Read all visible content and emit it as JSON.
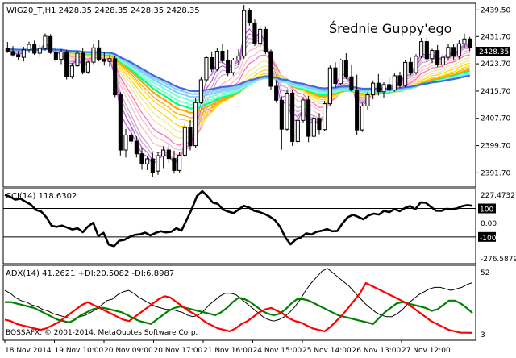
{
  "chart_data": {
    "symbol_header": "WIG20_T,H1  2428.35 2428.35 2428.35 2428.35",
    "annotation": "Średnie Guppy'ego",
    "copyright": "BOSSAFX, © 2001-2014, MetaQuotes Software Corp.",
    "current_price_label": "2428.35",
    "main_pane": {
      "type": "candlestick",
      "y_ticks": [
        "2439.50",
        "2431.70",
        "2423.70",
        "2415.70",
        "2407.70",
        "2399.70",
        "2391.70"
      ],
      "ylim": [
        2388.0,
        2441.0
      ],
      "current_price": 2428.35,
      "candles": [
        {
          "o": 2428.2,
          "h": 2430.1,
          "l": 2426.9,
          "c": 2427.2
        },
        {
          "o": 2427.3,
          "h": 2428.9,
          "l": 2425.8,
          "c": 2426.3
        },
        {
          "o": 2426.3,
          "h": 2427.5,
          "l": 2424.8,
          "c": 2425.7
        },
        {
          "o": 2425.6,
          "h": 2428.7,
          "l": 2424.4,
          "c": 2427.8
        },
        {
          "o": 2427.8,
          "h": 2430.2,
          "l": 2426.9,
          "c": 2429.4
        },
        {
          "o": 2429.3,
          "h": 2430.5,
          "l": 2426.3,
          "c": 2426.8
        },
        {
          "o": 2426.8,
          "h": 2429.3,
          "l": 2425.7,
          "c": 2428.2
        },
        {
          "o": 2428.2,
          "h": 2432.6,
          "l": 2427.6,
          "c": 2431.8
        },
        {
          "o": 2431.7,
          "h": 2432.4,
          "l": 2426.6,
          "c": 2427.0
        },
        {
          "o": 2427.0,
          "h": 2428.6,
          "l": 2424.2,
          "c": 2425.0
        },
        {
          "o": 2425.0,
          "h": 2428.0,
          "l": 2423.6,
          "c": 2427.2
        },
        {
          "o": 2427.2,
          "h": 2427.8,
          "l": 2419.1,
          "c": 2419.9
        },
        {
          "o": 2420.0,
          "h": 2423.9,
          "l": 2419.3,
          "c": 2423.1
        },
        {
          "o": 2423.1,
          "h": 2427.4,
          "l": 2422.8,
          "c": 2426.8
        },
        {
          "o": 2426.8,
          "h": 2428.3,
          "l": 2420.6,
          "c": 2421.3
        },
        {
          "o": 2421.3,
          "h": 2424.5,
          "l": 2420.8,
          "c": 2424.2
        },
        {
          "o": 2424.2,
          "h": 2429.7,
          "l": 2423.6,
          "c": 2428.4
        },
        {
          "o": 2428.4,
          "h": 2430.6,
          "l": 2424.4,
          "c": 2425.0
        },
        {
          "o": 2425.0,
          "h": 2427.2,
          "l": 2423.2,
          "c": 2424.4
        },
        {
          "o": 2424.4,
          "h": 2426.3,
          "l": 2422.8,
          "c": 2425.2
        },
        {
          "o": 2425.2,
          "h": 2426.0,
          "l": 2413.9,
          "c": 2414.6
        },
        {
          "o": 2414.6,
          "h": 2415.4,
          "l": 2396.8,
          "c": 2398.4
        },
        {
          "o": 2398.4,
          "h": 2404.6,
          "l": 2396.2,
          "c": 2402.8
        },
        {
          "o": 2402.8,
          "h": 2405.1,
          "l": 2400.3,
          "c": 2401.0
        },
        {
          "o": 2401.0,
          "h": 2402.4,
          "l": 2396.2,
          "c": 2397.3
        },
        {
          "o": 2397.3,
          "h": 2399.2,
          "l": 2392.6,
          "c": 2394.3
        },
        {
          "o": 2394.3,
          "h": 2396.6,
          "l": 2392.5,
          "c": 2395.8
        },
        {
          "o": 2395.8,
          "h": 2397.6,
          "l": 2390.5,
          "c": 2391.9
        },
        {
          "o": 2392.2,
          "h": 2397.9,
          "l": 2391.1,
          "c": 2396.7
        },
        {
          "o": 2396.6,
          "h": 2399.5,
          "l": 2393.1,
          "c": 2398.4
        },
        {
          "o": 2398.4,
          "h": 2400.3,
          "l": 2394.6,
          "c": 2395.9
        },
        {
          "o": 2395.9,
          "h": 2398.2,
          "l": 2391.5,
          "c": 2392.4
        },
        {
          "o": 2392.4,
          "h": 2397.7,
          "l": 2391.8,
          "c": 2396.9
        },
        {
          "o": 2396.9,
          "h": 2406.1,
          "l": 2396.2,
          "c": 2405.0
        },
        {
          "o": 2405.0,
          "h": 2407.2,
          "l": 2398.3,
          "c": 2399.7
        },
        {
          "o": 2399.7,
          "h": 2413.6,
          "l": 2399.0,
          "c": 2412.3
        },
        {
          "o": 2412.3,
          "h": 2419.7,
          "l": 2411.9,
          "c": 2419.0
        },
        {
          "o": 2419.0,
          "h": 2426.0,
          "l": 2418.3,
          "c": 2425.5
        },
        {
          "o": 2425.5,
          "h": 2427.3,
          "l": 2421.3,
          "c": 2422.1
        },
        {
          "o": 2422.1,
          "h": 2428.4,
          "l": 2421.5,
          "c": 2427.4
        },
        {
          "o": 2427.4,
          "h": 2429.4,
          "l": 2423.8,
          "c": 2424.6
        },
        {
          "o": 2424.6,
          "h": 2427.8,
          "l": 2420.1,
          "c": 2421.1
        },
        {
          "o": 2421.1,
          "h": 2425.4,
          "l": 2420.3,
          "c": 2424.8
        },
        {
          "o": 2424.8,
          "h": 2428.0,
          "l": 2423.5,
          "c": 2426.0
        },
        {
          "o": 2426.0,
          "h": 2441.0,
          "l": 2425.2,
          "c": 2439.3
        },
        {
          "o": 2439.3,
          "h": 2440.0,
          "l": 2434.9,
          "c": 2435.7
        },
        {
          "o": 2435.7,
          "h": 2436.7,
          "l": 2428.9,
          "c": 2429.7
        },
        {
          "o": 2429.7,
          "h": 2434.7,
          "l": 2428.5,
          "c": 2433.8
        },
        {
          "o": 2433.8,
          "h": 2434.7,
          "l": 2426.6,
          "c": 2427.3
        },
        {
          "o": 2427.3,
          "h": 2427.9,
          "l": 2416.0,
          "c": 2417.1
        },
        {
          "o": 2417.1,
          "h": 2418.9,
          "l": 2412.3,
          "c": 2413.0
        },
        {
          "o": 2413.0,
          "h": 2414.1,
          "l": 2398.5,
          "c": 2404.5
        },
        {
          "o": 2404.5,
          "h": 2416.1,
          "l": 2403.9,
          "c": 2415.1
        },
        {
          "o": 2415.1,
          "h": 2416.2,
          "l": 2399.6,
          "c": 2400.9
        },
        {
          "o": 2400.9,
          "h": 2408.2,
          "l": 2400.2,
          "c": 2407.1
        },
        {
          "o": 2407.1,
          "h": 2413.9,
          "l": 2406.4,
          "c": 2413.1
        },
        {
          "o": 2413.1,
          "h": 2414.3,
          "l": 2400.7,
          "c": 2402.4
        },
        {
          "o": 2402.4,
          "h": 2408.5,
          "l": 2401.8,
          "c": 2407.7
        },
        {
          "o": 2407.7,
          "h": 2409.2,
          "l": 2403.0,
          "c": 2404.4
        },
        {
          "o": 2404.4,
          "h": 2412.8,
          "l": 2403.9,
          "c": 2412.0
        },
        {
          "o": 2412.0,
          "h": 2423.2,
          "l": 2411.4,
          "c": 2422.5
        },
        {
          "o": 2422.5,
          "h": 2424.1,
          "l": 2416.6,
          "c": 2417.9
        },
        {
          "o": 2417.9,
          "h": 2425.2,
          "l": 2417.4,
          "c": 2424.8
        },
        {
          "o": 2424.8,
          "h": 2426.8,
          "l": 2419.2,
          "c": 2419.9
        },
        {
          "o": 2419.9,
          "h": 2423.5,
          "l": 2415.5,
          "c": 2416.0
        },
        {
          "o": 2416.0,
          "h": 2420.5,
          "l": 2402.8,
          "c": 2404.3
        },
        {
          "o": 2404.3,
          "h": 2412.2,
          "l": 2403.7,
          "c": 2411.3
        },
        {
          "o": 2411.3,
          "h": 2415.4,
          "l": 2410.0,
          "c": 2414.6
        },
        {
          "o": 2414.6,
          "h": 2418.8,
          "l": 2413.3,
          "c": 2418.0
        },
        {
          "o": 2418.0,
          "h": 2420.7,
          "l": 2414.4,
          "c": 2415.5
        },
        {
          "o": 2415.5,
          "h": 2418.3,
          "l": 2413.8,
          "c": 2417.6
        },
        {
          "o": 2417.6,
          "h": 2419.6,
          "l": 2415.1,
          "c": 2416.0
        },
        {
          "o": 2416.0,
          "h": 2421.0,
          "l": 2415.5,
          "c": 2420.2
        },
        {
          "o": 2420.2,
          "h": 2421.4,
          "l": 2416.6,
          "c": 2417.3
        },
        {
          "o": 2417.3,
          "h": 2424.9,
          "l": 2416.8,
          "c": 2424.1
        },
        {
          "o": 2424.1,
          "h": 2425.5,
          "l": 2420.4,
          "c": 2421.1
        },
        {
          "o": 2421.1,
          "h": 2426.5,
          "l": 2420.5,
          "c": 2425.9
        },
        {
          "o": 2425.9,
          "h": 2431.3,
          "l": 2425.3,
          "c": 2430.2
        },
        {
          "o": 2430.2,
          "h": 2431.5,
          "l": 2424.2,
          "c": 2425.2
        },
        {
          "o": 2425.2,
          "h": 2428.1,
          "l": 2423.9,
          "c": 2427.6
        },
        {
          "o": 2427.6,
          "h": 2429.2,
          "l": 2422.8,
          "c": 2423.4
        },
        {
          "o": 2423.4,
          "h": 2426.6,
          "l": 2422.5,
          "c": 2425.6
        },
        {
          "o": 2425.6,
          "h": 2429.4,
          "l": 2424.9,
          "c": 2428.5
        },
        {
          "o": 2428.5,
          "h": 2429.6,
          "l": 2424.6,
          "c": 2425.9
        },
        {
          "o": 2425.9,
          "h": 2430.6,
          "l": 2425.2,
          "c": 2429.6
        },
        {
          "o": 2429.6,
          "h": 2432.5,
          "l": 2428.4,
          "c": 2431.0
        },
        {
          "o": 2431.0,
          "h": 2431.6,
          "l": 2427.4,
          "c": 2428.35
        }
      ],
      "guppy_colors": [
        "#ba55d3",
        "#c8a2c8",
        "#ffb6c1",
        "#ff69b4",
        "#f0e68c",
        "#ffd700",
        "#ffa500",
        "#00ff7f",
        "#7fffd4",
        "#87cefa",
        "#4169e1"
      ]
    },
    "cci_pane": {
      "title": "CCI(14) 118.6302",
      "type": "line",
      "y_ticks": [
        "227.4732",
        "100",
        "0.00",
        "-100",
        "-276.5879"
      ],
      "ylim": [
        -276.5879,
        227.4732
      ],
      "levels": [
        100,
        -100
      ],
      "values": [
        196,
        183,
        162,
        169,
        147,
        127,
        89,
        78,
        37,
        -22,
        -29,
        -20,
        -34,
        -48,
        -39,
        -67,
        -27,
        -1,
        -94,
        -71,
        -154,
        -165,
        -127,
        -121,
        -100,
        -86,
        -82,
        -70,
        -89,
        -72,
        -60,
        -68,
        -64,
        -39,
        -56,
        21,
        98,
        188,
        221,
        186,
        142,
        132,
        92,
        78,
        67,
        92,
        119,
        106,
        83,
        75,
        61,
        42,
        17,
        -31,
        -105,
        -152,
        -118,
        -103,
        -75,
        -83,
        -64,
        -57,
        -45,
        -60,
        -58,
        -4,
        38,
        56,
        41,
        24,
        51,
        63,
        57,
        83,
        74,
        95,
        81,
        103,
        117,
        94,
        142,
        140,
        111,
        84,
        83,
        97,
        95,
        100,
        116,
        123,
        118.6302
      ]
    },
    "adx_pane": {
      "title": "ADX(14) 41.2621 +DI:20.5082 -DI:6.8987",
      "type": "line",
      "y_ticks": [
        "52",
        "3"
      ],
      "ylim": [
        3,
        52
      ],
      "series": [
        {
          "color": "#000000",
          "values": [
            36,
            34,
            31,
            29,
            28,
            26,
            25,
            23,
            22,
            20,
            19,
            18,
            17,
            17,
            18,
            19,
            21,
            23,
            26,
            29,
            30,
            33,
            35,
            36,
            34,
            31,
            29,
            27,
            25,
            24,
            23,
            23,
            22,
            21,
            19,
            18,
            19,
            22,
            26,
            29,
            32,
            34,
            34,
            33,
            30,
            27,
            24,
            21,
            18,
            16,
            15,
            16,
            18,
            21,
            25,
            30,
            36,
            41,
            45,
            49,
            51,
            48,
            45,
            42,
            39,
            35,
            31,
            27,
            24,
            21,
            19,
            18,
            18,
            20,
            23,
            27,
            30,
            33,
            35,
            37,
            38,
            38,
            37,
            36,
            37,
            38,
            40,
            41.2621
          ]
        },
        {
          "color": "#008000",
          "values": [
            28,
            28,
            27,
            26,
            25,
            24,
            22,
            20,
            18,
            16,
            15,
            14,
            16,
            19,
            21,
            23,
            24,
            24,
            23,
            22,
            21,
            19,
            17,
            15,
            14,
            13,
            16,
            19,
            22,
            24,
            25,
            24,
            23,
            22,
            21,
            20,
            19,
            21,
            24,
            28,
            31,
            30,
            28,
            25,
            22,
            20,
            19,
            20,
            23,
            27,
            30,
            30,
            29,
            27,
            25,
            23,
            21,
            19,
            18,
            17,
            16,
            15,
            14,
            13,
            17,
            21,
            24,
            27,
            28,
            27,
            26,
            25,
            24,
            22,
            23,
            26,
            29,
            29,
            27,
            24,
            20.5082
          ]
        },
        {
          "color": "#ff0000",
          "values": [
            16,
            15,
            13,
            12,
            11,
            10,
            9,
            10,
            12,
            14,
            17,
            20,
            23,
            26,
            28,
            26,
            24,
            22,
            20,
            18,
            16,
            15,
            18,
            21,
            24,
            27,
            30,
            32,
            31,
            28,
            25,
            22,
            20,
            17,
            14,
            12,
            10,
            9,
            8,
            10,
            13,
            15,
            18,
            21,
            23,
            24,
            22,
            20,
            17,
            15,
            14,
            12,
            10,
            9,
            8,
            11,
            15,
            19,
            24,
            29,
            34,
            41,
            39,
            37,
            35,
            33,
            31,
            29,
            27,
            24,
            21,
            18,
            15,
            13,
            11,
            9,
            8,
            7,
            7,
            6.8987
          ]
        }
      ]
    },
    "time_labels": [
      "18 Nov 2014",
      "19 Nov 10:00",
      "20 Nov 09:00",
      "20 Nov 17:00",
      "21 Nov 16:00",
      "24 Nov 15:00",
      "25 Nov 14:00",
      "26 Nov 13:00",
      "27 Nov 12:00"
    ]
  }
}
